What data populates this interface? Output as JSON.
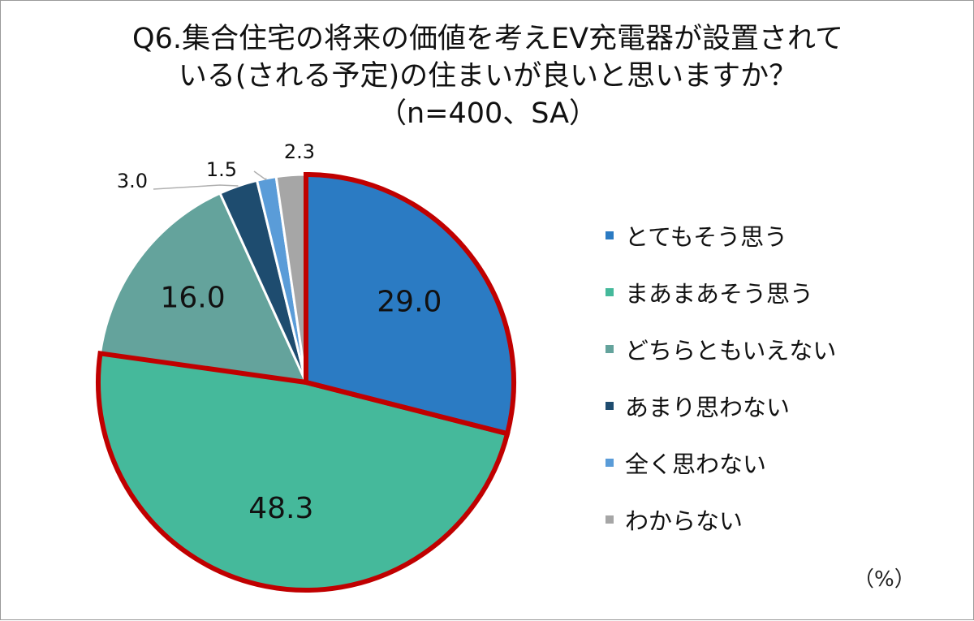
{
  "chart_data": {
    "type": "pie",
    "title_lines": [
      "Q6.集合住宅の将来の価値を考えEV充電器が設置されて",
      "いる(される予定)の住まいが良いと思いますか？",
      "（n=400、SA）"
    ],
    "unit": "（%）",
    "legend_position": "right",
    "slices": [
      {
        "label": "とてもそう思う",
        "value": 29.0,
        "value_label": "29.0",
        "color": "#2B7BC3",
        "highlight": true
      },
      {
        "label": "まあまあそう思う",
        "value": 48.3,
        "value_label": "48.3",
        "color": "#45B99B",
        "highlight": true
      },
      {
        "label": "どちらともいえない",
        "value": 16.0,
        "value_label": "16.0",
        "color": "#64A39C",
        "highlight": false
      },
      {
        "label": "あまり思わない",
        "value": 3.0,
        "value_label": "3.0",
        "color": "#1E4C6F",
        "highlight": false
      },
      {
        "label": "全く思わない",
        "value": 1.5,
        "value_label": "1.5",
        "color": "#5A9CD8",
        "highlight": false
      },
      {
        "label": "わからない",
        "value": 2.3,
        "value_label": "2.3",
        "color": "#A6A6A6",
        "highlight": false
      }
    ],
    "highlight_color": "#C00000"
  }
}
